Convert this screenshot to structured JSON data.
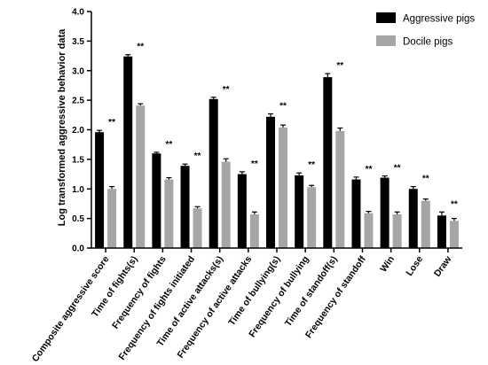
{
  "chart_data": {
    "type": "bar",
    "title": "",
    "xlabel": "",
    "ylabel": "Log transformed aggressive behavior data",
    "ylim": [
      0,
      4.0
    ],
    "yticks": [
      "0.0",
      "0.5",
      "1.0",
      "1.5",
      "2.0",
      "2.5",
      "3.0",
      "3.5",
      "4.0"
    ],
    "categories": [
      "Composite aggressive score",
      "Time of fights(s)",
      "Frequency of fights",
      "Frequency of fights initiated",
      "Time of active attacks(s)",
      "Frequency of active attacks",
      "Time of bullying(s)",
      "Frequency of bullying",
      "Time of standoff(s)",
      "Frequency of standoff",
      "Win",
      "Lose",
      "Draw"
    ],
    "series": [
      {
        "name": "Aggressive pigs",
        "color": "#000000",
        "values": [
          1.96,
          3.24,
          1.6,
          1.39,
          2.52,
          1.25,
          2.22,
          1.23,
          2.89,
          1.16,
          1.19,
          1.0,
          0.55
        ],
        "errors": [
          0.03,
          0.03,
          0.02,
          0.03,
          0.03,
          0.04,
          0.05,
          0.04,
          0.06,
          0.04,
          0.03,
          0.04,
          0.06
        ]
      },
      {
        "name": "Docile pigs",
        "color": "#a6a6a6",
        "values": [
          1.0,
          2.41,
          1.16,
          0.67,
          1.46,
          0.57,
          2.04,
          1.03,
          1.98,
          0.59,
          0.57,
          0.8,
          0.46
        ],
        "errors": [
          0.04,
          0.03,
          0.03,
          0.03,
          0.05,
          0.04,
          0.04,
          0.03,
          0.05,
          0.03,
          0.04,
          0.03,
          0.04
        ]
      }
    ],
    "significance": [
      "**",
      "**",
      "**",
      "**",
      "**",
      "**",
      "**",
      "**",
      "**",
      "**",
      "**",
      "**",
      "**"
    ],
    "legend_position": "top-right",
    "grid": false
  }
}
